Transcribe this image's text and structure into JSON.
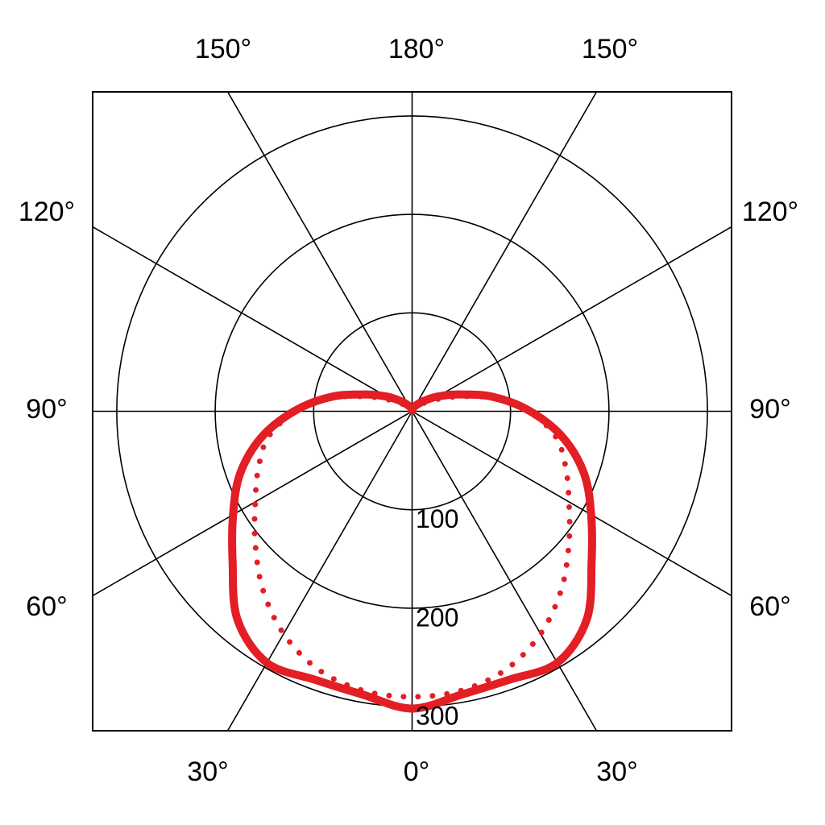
{
  "chart_data": {
    "type": "polar",
    "title": "",
    "radial_ticks": [
      100,
      200,
      300
    ],
    "radial_max": 325,
    "angle_labels": {
      "left": [
        "150°",
        "120°",
        "90°",
        "60°",
        "30°"
      ],
      "right": [
        "150°",
        "120°",
        "90°",
        "60°",
        "30°"
      ],
      "top": "180°",
      "bottom": "0°"
    },
    "grid": true,
    "series": [
      {
        "style": "solid",
        "color": "#e31e24",
        "angles": [
          0,
          10,
          20,
          30,
          40,
          50,
          60,
          70,
          80,
          90,
          100,
          110,
          120,
          130,
          140,
          150,
          160,
          170,
          180
        ],
        "values": [
          302,
          292,
          290,
          295,
          276,
          238,
          210,
          186,
          156,
          120,
          84,
          50,
          30,
          17,
          10,
          6,
          4,
          2,
          1
        ]
      },
      {
        "style": "dotted",
        "color": "#e31e24",
        "angles": [
          0,
          10,
          20,
          30,
          40,
          50,
          60,
          70,
          80,
          90,
          100,
          110,
          120,
          130,
          140,
          150,
          160,
          170,
          180
        ],
        "values": [
          290,
          288,
          279,
          261,
          236,
          208,
          184,
          166,
          148,
          118,
          80,
          42,
          20,
          10,
          6,
          4,
          3,
          2,
          1
        ]
      }
    ]
  }
}
